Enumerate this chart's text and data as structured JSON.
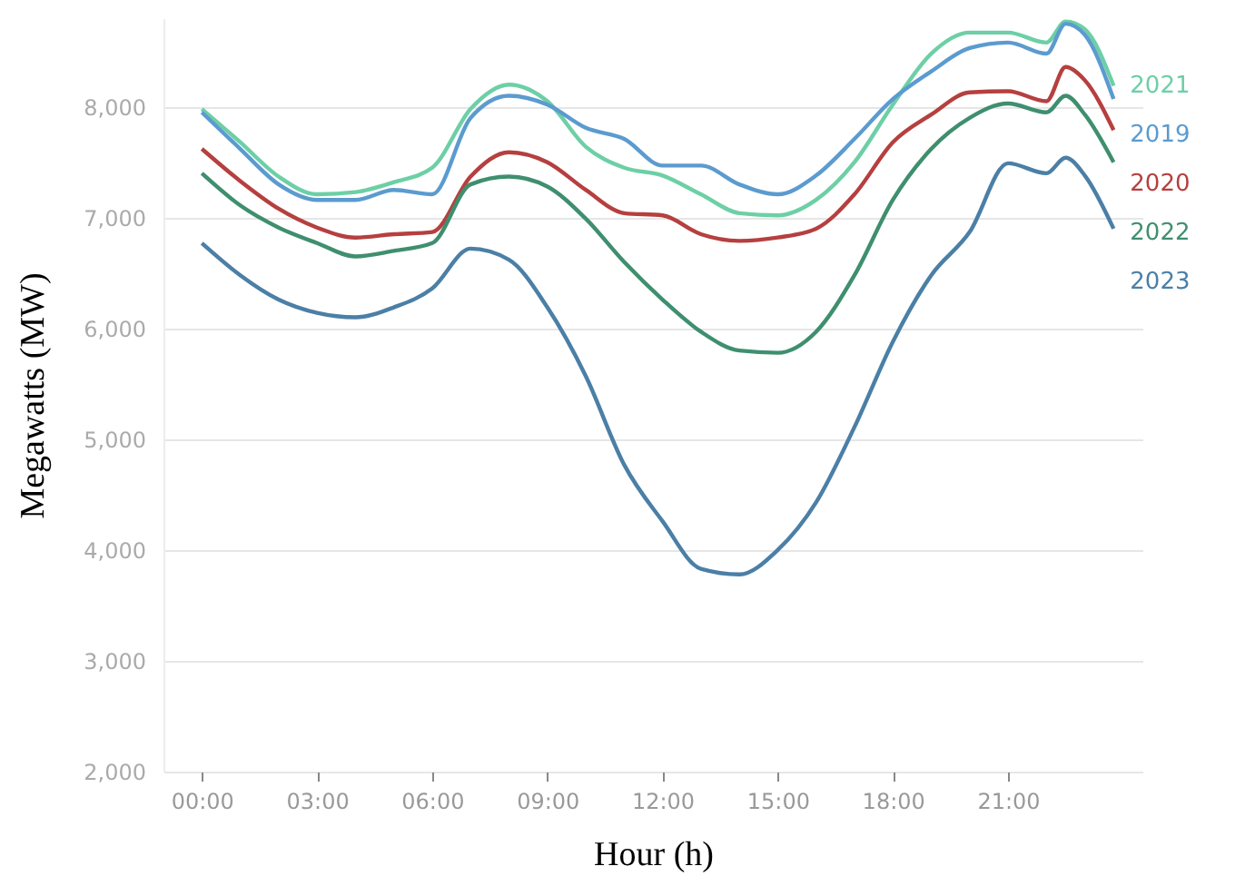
{
  "chart_data": {
    "type": "line",
    "xlabel": "Hour (h)",
    "ylabel": "Megawatts (MW)",
    "x": [
      0,
      1,
      2,
      3,
      4,
      5,
      6,
      7,
      8,
      9,
      10,
      11,
      12,
      13,
      14,
      15,
      16,
      17,
      18,
      19,
      20,
      21,
      22,
      22.5,
      23,
      23.75
    ],
    "series": [
      {
        "name": "2021",
        "color": "#6dcfa6",
        "values": [
          7980,
          7680,
          7370,
          7210,
          7230,
          7320,
          7450,
          7980,
          8200,
          8050,
          7640,
          7450,
          7380,
          7210,
          7040,
          7020,
          7160,
          7500,
          8020,
          8480,
          8670,
          8670,
          8580,
          8770,
          8700,
          8190
        ]
      },
      {
        "name": "2019",
        "color": "#5b9bcf",
        "values": [
          7950,
          7620,
          7300,
          7160,
          7160,
          7250,
          7210,
          7900,
          8100,
          8020,
          7810,
          7710,
          7470,
          7470,
          7300,
          7210,
          7380,
          7710,
          8070,
          8320,
          8530,
          8580,
          8480,
          8750,
          8650,
          8070
        ]
      },
      {
        "name": "2020",
        "color": "#b5403f",
        "values": [
          7620,
          7330,
          7080,
          6910,
          6820,
          6850,
          6870,
          7370,
          7590,
          7500,
          7250,
          7040,
          7020,
          6850,
          6790,
          6820,
          6900,
          7210,
          7680,
          7930,
          8130,
          8140,
          8050,
          8360,
          8240,
          7790
        ]
      },
      {
        "name": "2022",
        "color": "#3f8f6f",
        "values": [
          7400,
          7110,
          6910,
          6770,
          6650,
          6700,
          6770,
          7300,
          7370,
          7280,
          6990,
          6600,
          6260,
          5970,
          5800,
          5780,
          5970,
          6480,
          7160,
          7620,
          7900,
          8030,
          7950,
          8100,
          7930,
          7500
        ]
      },
      {
        "name": "2023",
        "color": "#4b7fa6",
        "values": [
          6770,
          6480,
          6260,
          6140,
          6100,
          6190,
          6360,
          6720,
          6620,
          6190,
          5570,
          4770,
          4260,
          3830,
          3780,
          4000,
          4430,
          5110,
          5880,
          6480,
          6870,
          7490,
          7400,
          7540,
          7380,
          6900
        ]
      }
    ],
    "xlim": [
      -1,
      24.5
    ],
    "xticks": [
      {
        "value": 0,
        "label": "00:00"
      },
      {
        "value": 3,
        "label": "03:00"
      },
      {
        "value": 6,
        "label": "06:00"
      },
      {
        "value": 9,
        "label": "09:00"
      },
      {
        "value": 12,
        "label": "12:00"
      },
      {
        "value": 15,
        "label": "15:00"
      },
      {
        "value": 18,
        "label": "18:00"
      },
      {
        "value": 21,
        "label": "21:00"
      }
    ],
    "ylim": [
      2000,
      8800
    ],
    "yticks": [
      {
        "value": 2000,
        "label": "2,000"
      },
      {
        "value": 3000,
        "label": "3,000"
      },
      {
        "value": 4000,
        "label": "4,000"
      },
      {
        "value": 5000,
        "label": "5,000"
      },
      {
        "value": 6000,
        "label": "6,000"
      },
      {
        "value": 7000,
        "label": "7,000"
      },
      {
        "value": 8000,
        "label": "8,000"
      }
    ],
    "grid": "y",
    "marker": "none",
    "line_style": "solid"
  }
}
